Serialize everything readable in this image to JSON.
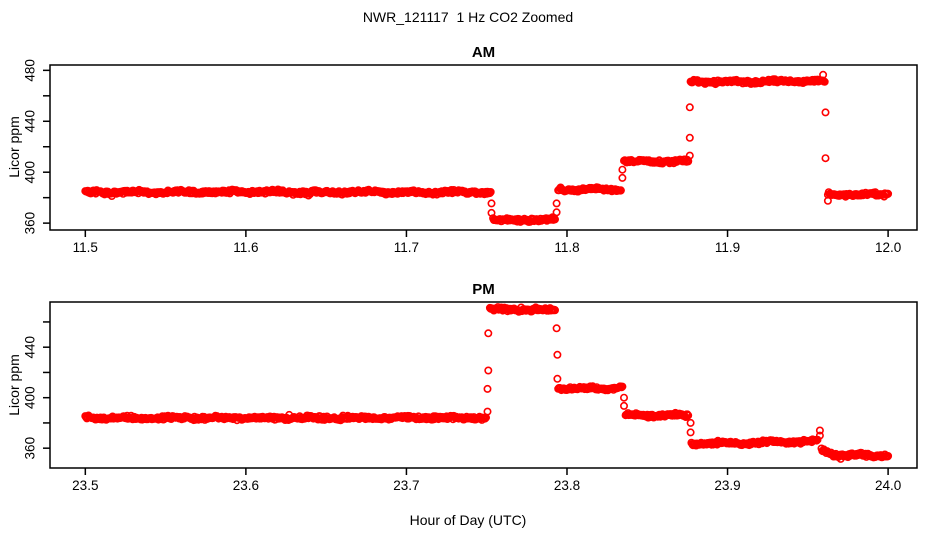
{
  "figure": {
    "title": "NWR_121117  1 Hz CO2 Zoomed",
    "xlabel": "Hour of Day (UTC)",
    "background_color": "#FFFFFF",
    "point_color": "#FF0000",
    "axis_color": "#000000"
  },
  "chart_data": [
    {
      "type": "scatter",
      "title": "AM",
      "ylabel": "Licor ppm",
      "marker": "open-circle",
      "grid": false,
      "legend": "none",
      "xlim": [
        11.478,
        12.018
      ],
      "ylim": [
        354.6,
        484.2
      ],
      "xticks": {
        "values": [
          11.5,
          11.6,
          11.7,
          11.8,
          11.9,
          12.0
        ],
        "labels": [
          "11.5",
          "11.6",
          "11.7",
          "11.8",
          "11.9",
          "12.0"
        ]
      },
      "yticks": {
        "major_values": [
          360,
          400,
          440,
          480
        ],
        "major_labels": [
          "360",
          "400",
          "440",
          "480"
        ],
        "minor_values": [
          380,
          420,
          460
        ]
      },
      "segments": [
        {
          "x0": 11.5,
          "x1": 11.7525,
          "y0": 384.3,
          "y1": 384.3
        },
        {
          "x0": 11.754,
          "x1": 11.7925,
          "y0": 362.5,
          "y1": 362.5
        },
        {
          "x0": 11.7945,
          "x1": 11.8335,
          "y0": 386.5,
          "y1": 386.5
        },
        {
          "x0": 11.8355,
          "x1": 11.8755,
          "y0": 408.5,
          "y1": 408.5
        },
        {
          "x0": 11.877,
          "x1": 11.9605,
          "y0": 471.0,
          "y1": 471.5
        },
        {
          "x0": 11.9625,
          "x1": 12.0,
          "y0": 382.5,
          "y1": 382.5
        }
      ],
      "transition_points": [
        [
          11.753,
          375.5
        ],
        [
          11.753,
          368.0
        ],
        [
          11.7935,
          375.5
        ],
        [
          11.7935,
          368.5
        ],
        [
          11.8345,
          402.0
        ],
        [
          11.8345,
          395.5
        ],
        [
          11.8765,
          451.0
        ],
        [
          11.8765,
          427.0
        ],
        [
          11.8765,
          413.0
        ],
        [
          11.9595,
          476.5
        ],
        [
          11.961,
          447.0
        ],
        [
          11.961,
          411.0
        ],
        [
          11.9625,
          377.5
        ]
      ]
    },
    {
      "type": "scatter",
      "title": "PM",
      "ylabel": "Licor ppm",
      "marker": "open-circle",
      "grid": false,
      "legend": "none",
      "xlim": [
        23.478,
        24.018
      ],
      "ylim": [
        344.3,
        475.8
      ],
      "xticks": {
        "values": [
          23.5,
          23.6,
          23.7,
          23.8,
          23.9,
          24.0
        ],
        "labels": [
          "23.5",
          "23.6",
          "23.7",
          "23.8",
          "23.9",
          "24.0"
        ]
      },
      "yticks": {
        "major_values": [
          360,
          400,
          440
        ],
        "major_labels": [
          "360",
          "400",
          "440"
        ],
        "minor_values": [
          380,
          420,
          460
        ]
      },
      "segments": [
        {
          "x0": 23.5,
          "x1": 23.7495,
          "y0": 384.0,
          "y1": 384.0
        },
        {
          "x0": 23.752,
          "x1": 23.7925,
          "y0": 470.0,
          "y1": 469.5
        },
        {
          "x0": 23.7945,
          "x1": 23.8345,
          "y0": 407.5,
          "y1": 407.5
        },
        {
          "x0": 23.8365,
          "x1": 23.8755,
          "y0": 386.0,
          "y1": 386.0
        },
        {
          "x0": 23.8775,
          "x1": 23.956,
          "y0": 363.5,
          "y1": 365.5
        },
        {
          "x0": 23.9585,
          "x1": 23.966,
          "y0": 359.0,
          "y1": 354.5
        },
        {
          "x0": 23.966,
          "x1": 24.0,
          "y0": 354.5,
          "y1": 354.0
        }
      ],
      "transition_points": [
        [
          23.7505,
          389.0
        ],
        [
          23.7505,
          407.0
        ],
        [
          23.751,
          421.5
        ],
        [
          23.751,
          451.0
        ],
        [
          23.7935,
          455.0
        ],
        [
          23.794,
          434.0
        ],
        [
          23.794,
          415.0
        ],
        [
          23.8355,
          400.0
        ],
        [
          23.8355,
          393.5
        ],
        [
          23.877,
          380.0
        ],
        [
          23.877,
          372.5
        ],
        [
          23.9575,
          374.0
        ],
        [
          23.9575,
          370.0
        ]
      ]
    }
  ]
}
